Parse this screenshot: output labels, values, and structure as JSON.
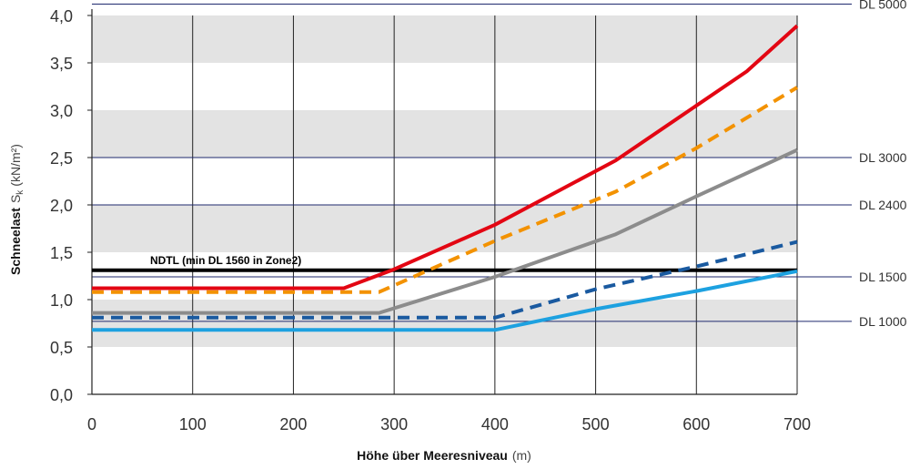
{
  "chart_data": {
    "type": "line",
    "xlabel": {
      "bold": "Höhe über Meeresniveau",
      "unit": "(m)"
    },
    "ylabel": {
      "bold": "Schneelast",
      "symbol": "S",
      "subscript": "k",
      "unit": "(kN/m²)"
    },
    "xlim": [
      0,
      700
    ],
    "ylim": [
      0,
      4.0
    ],
    "x_ticks": [
      "0",
      "100",
      "200",
      "300",
      "400",
      "500",
      "600",
      "700"
    ],
    "y_ticks": [
      "0,0",
      "0,5",
      "1,0",
      "1,5",
      "2,0",
      "2,5",
      "3,0",
      "3,5",
      "4,0"
    ],
    "grid": "vertical lines every 100 m; alternating grey horizontal bands every 0.5",
    "reference_lines": [
      {
        "label": "DL 5000",
        "y": 4.12
      },
      {
        "label": "DL 3000",
        "y": 2.5
      },
      {
        "label": "DL 2400",
        "y": 2.0
      },
      {
        "label": "DL 1500",
        "y": 1.24
      },
      {
        "label": "DL 1000",
        "y": 0.77
      }
    ],
    "annotation": {
      "text": "NDTL (min DL 1560 in Zone2)"
    },
    "series": [
      {
        "color": "#000000",
        "style": "solid",
        "x": [
          0,
          700
        ],
        "y": [
          1.31,
          1.31
        ]
      },
      {
        "color": "#e30613",
        "style": "solid",
        "x": [
          0,
          250,
          300,
          400,
          520,
          650,
          700
        ],
        "y": [
          1.12,
          1.12,
          1.32,
          1.79,
          2.47,
          3.41,
          3.89
        ]
      },
      {
        "color": "#f39200",
        "style": "dashed",
        "x": [
          0,
          285,
          400,
          520,
          600,
          700
        ],
        "y": [
          1.08,
          1.08,
          1.62,
          2.14,
          2.6,
          3.24
        ]
      },
      {
        "color": "#8c8c8c",
        "style": "solid",
        "x": [
          0,
          285,
          400,
          520,
          600,
          700
        ],
        "y": [
          0.86,
          0.86,
          1.24,
          1.69,
          2.09,
          2.58
        ]
      },
      {
        "color": "#1a5aa0",
        "style": "dashed",
        "x": [
          0,
          400,
          500,
          600,
          700
        ],
        "y": [
          0.81,
          0.81,
          1.11,
          1.35,
          1.61
        ]
      },
      {
        "color": "#1da1e0",
        "style": "solid",
        "x": [
          0,
          400,
          500,
          600,
          700
        ],
        "y": [
          0.68,
          0.68,
          0.9,
          1.09,
          1.3
        ]
      }
    ]
  }
}
